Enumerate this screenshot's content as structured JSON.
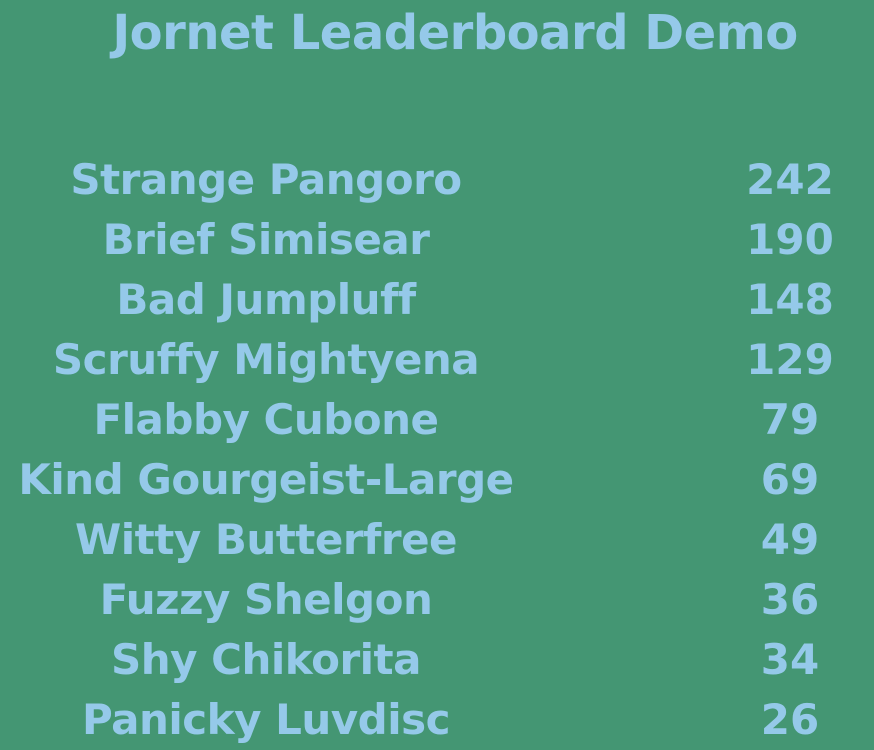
{
  "title": "Jornet Leaderboard Demo",
  "colors": {
    "background": "#449673",
    "text": "#95c9e9"
  },
  "leaderboard": [
    {
      "name": "Strange Pangoro",
      "score": "242"
    },
    {
      "name": "Brief Simisear",
      "score": "190"
    },
    {
      "name": "Bad Jumpluff",
      "score": "148"
    },
    {
      "name": "Scruffy Mightyena",
      "score": "129"
    },
    {
      "name": "Flabby Cubone",
      "score": "79"
    },
    {
      "name": "Kind Gourgeist-Large",
      "score": "69"
    },
    {
      "name": "Witty Butterfree",
      "score": "49"
    },
    {
      "name": "Fuzzy Shelgon",
      "score": "36"
    },
    {
      "name": "Shy Chikorita",
      "score": "34"
    },
    {
      "name": "Panicky Luvdisc",
      "score": "26"
    }
  ]
}
